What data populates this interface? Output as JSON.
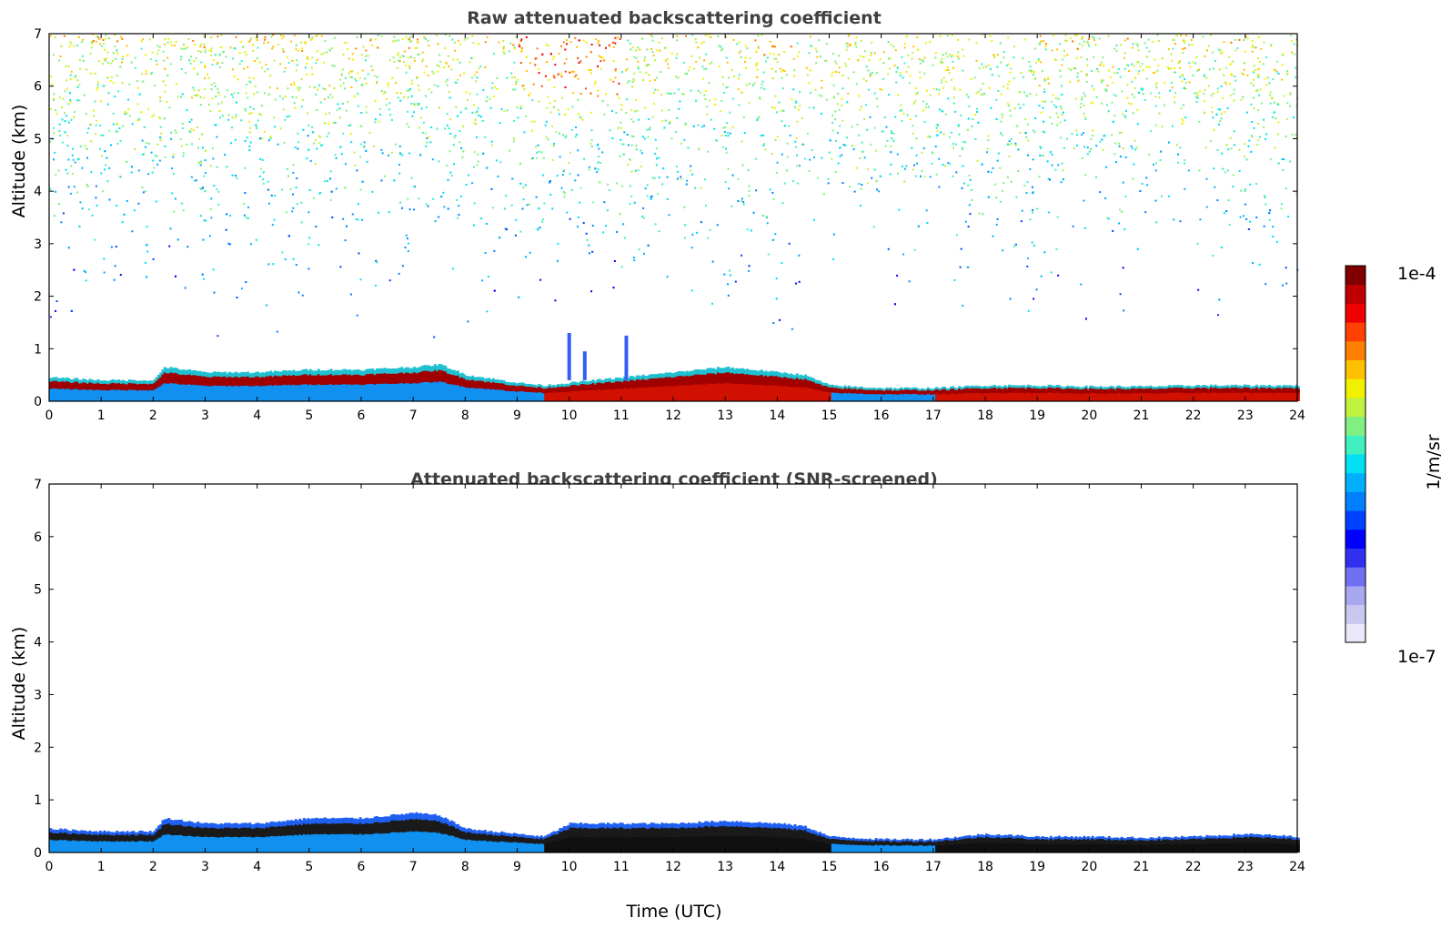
{
  "chart_data": [
    {
      "type": "heatmap",
      "title": "Raw attenuated backscattering coefficient",
      "xlabel": "",
      "ylabel": "Altitude (km)",
      "xlim": [
        0,
        24
      ],
      "ylim": [
        0,
        7
      ],
      "x_ticks": [
        "0",
        "1",
        "2",
        "3",
        "4",
        "5",
        "6",
        "7",
        "8",
        "9",
        "10",
        "11",
        "12",
        "13",
        "14",
        "15",
        "16",
        "17",
        "18",
        "19",
        "20",
        "21",
        "22",
        "23",
        "24"
      ],
      "y_ticks": [
        "0",
        "1",
        "2",
        "3",
        "4",
        "5",
        "6",
        "7"
      ],
      "boundary_layer_top_km": {
        "time_utc": [
          0,
          1,
          2,
          2.2,
          3,
          4,
          5,
          6,
          7,
          7.5,
          8,
          9,
          9.5,
          10,
          11,
          12,
          13,
          14,
          14.5,
          15,
          16,
          17,
          18,
          19,
          20,
          21,
          22,
          23,
          24
        ],
        "altitude": [
          0.45,
          0.4,
          0.4,
          0.65,
          0.55,
          0.55,
          0.6,
          0.6,
          0.65,
          0.7,
          0.5,
          0.35,
          0.3,
          0.35,
          0.45,
          0.55,
          0.65,
          0.55,
          0.5,
          0.3,
          0.25,
          0.25,
          0.3,
          0.3,
          0.28,
          0.28,
          0.3,
          0.3,
          0.3
        ]
      },
      "aerosol_plumes_km": [
        {
          "time_utc": 10.0,
          "top": 1.3
        },
        {
          "time_utc": 10.3,
          "top": 0.95
        },
        {
          "time_utc": 11.1,
          "top": 1.25
        }
      ],
      "noise_region": "sparse noise above the boundary layer, stronger toward 7 km",
      "colorscale": "jet"
    },
    {
      "type": "heatmap",
      "title": "Attenuated backscattering coefficient (SNR-screened)",
      "xlabel": "Time (UTC)",
      "ylabel": "Altitude (km)",
      "xlim": [
        0,
        24
      ],
      "ylim": [
        0,
        7
      ],
      "x_ticks": [
        "0",
        "1",
        "2",
        "3",
        "4",
        "5",
        "6",
        "7",
        "8",
        "9",
        "10",
        "11",
        "12",
        "13",
        "14",
        "15",
        "16",
        "17",
        "18",
        "19",
        "20",
        "21",
        "22",
        "23",
        "24"
      ],
      "y_ticks": [
        "0",
        "1",
        "2",
        "3",
        "4",
        "5",
        "6",
        "7"
      ],
      "boundary_layer_top_km": {
        "time_utc": [
          0,
          1,
          2,
          2.2,
          3,
          4,
          5,
          6,
          7,
          7.5,
          8,
          9,
          9.5,
          10,
          11,
          12,
          13,
          14,
          14.5,
          15,
          16,
          17,
          18,
          19,
          20,
          21,
          22,
          23,
          24
        ],
        "altitude": [
          0.45,
          0.4,
          0.4,
          0.65,
          0.55,
          0.55,
          0.65,
          0.65,
          0.75,
          0.7,
          0.45,
          0.35,
          0.3,
          0.55,
          0.55,
          0.55,
          0.6,
          0.55,
          0.5,
          0.3,
          0.25,
          0.25,
          0.35,
          0.3,
          0.3,
          0.28,
          0.3,
          0.35,
          0.3
        ]
      },
      "colorscale": "jet"
    }
  ],
  "colorbar": {
    "max_label": "1e-4",
    "min_label": "1e-7",
    "unit_label": "1/m/sr",
    "colors": [
      "#e8e8f8",
      "#c8c8f0",
      "#a8a8f0",
      "#7070f0",
      "#3030f0",
      "#0000ff",
      "#0040ff",
      "#0080ff",
      "#00b0ff",
      "#00e0f0",
      "#40f0c0",
      "#80f080",
      "#c0f040",
      "#f0f000",
      "#ffc000",
      "#ff8000",
      "#ff4000",
      "#f00000",
      "#c00000",
      "#800000"
    ]
  }
}
